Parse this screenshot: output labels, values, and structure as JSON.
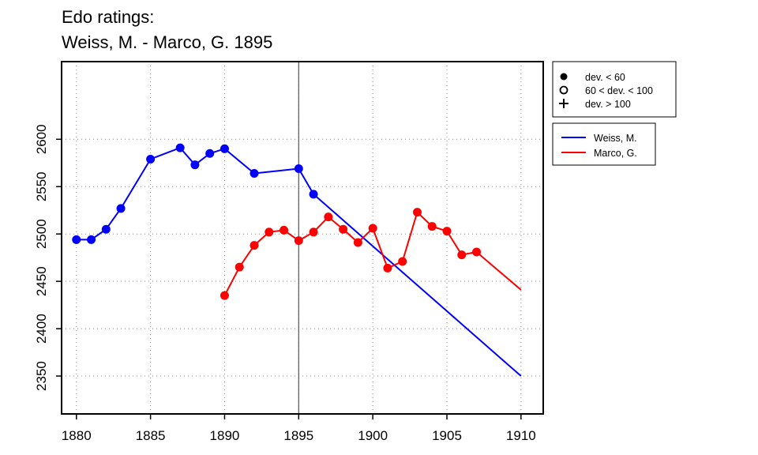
{
  "chart_data": {
    "type": "line",
    "title_lines": [
      "Edo ratings:",
      "Weiss, M. - Marco, G. 1895"
    ],
    "xlabel": "",
    "ylabel": "",
    "xlim": [
      1879,
      1911.5
    ],
    "ylim": [
      2310,
      2682
    ],
    "x_ticks": [
      1880,
      1885,
      1890,
      1895,
      1900,
      1905,
      1910
    ],
    "y_ticks": [
      2350,
      2400,
      2450,
      2500,
      2550,
      2600
    ],
    "grid": true,
    "vertical_marker_x": 1895,
    "deviation_legend": [
      {
        "marker": "filled-circle",
        "label": "dev. < 60"
      },
      {
        "marker": "open-circle",
        "label": "60 < dev. < 100"
      },
      {
        "marker": "plus",
        "label": "dev. > 100"
      }
    ],
    "series": [
      {
        "name": "Weiss, M.",
        "color": "#0000ff",
        "points": [
          [
            1880,
            2494
          ],
          [
            1881,
            2494
          ],
          [
            1882,
            2505
          ],
          [
            1883,
            2527
          ],
          [
            1885,
            2579
          ],
          [
            1887,
            2591
          ],
          [
            1888,
            2573
          ],
          [
            1889,
            2585
          ],
          [
            1890,
            2590
          ],
          [
            1892,
            2564
          ],
          [
            1895,
            2569
          ],
          [
            1896,
            2542
          ]
        ],
        "line_extension": [
          [
            1896,
            2542
          ],
          [
            1910,
            2350
          ]
        ]
      },
      {
        "name": "Marco, G.",
        "color": "#ff0000",
        "points": [
          [
            1890,
            2435
          ],
          [
            1891,
            2465
          ],
          [
            1892,
            2488
          ],
          [
            1893,
            2502
          ],
          [
            1894,
            2504
          ],
          [
            1895,
            2493
          ],
          [
            1896,
            2502
          ],
          [
            1897,
            2518
          ],
          [
            1898,
            2505
          ],
          [
            1899,
            2491
          ],
          [
            1900,
            2506
          ],
          [
            1901,
            2464
          ],
          [
            1902,
            2471
          ],
          [
            1903,
            2523
          ],
          [
            1904,
            2508
          ],
          [
            1905,
            2503
          ],
          [
            1906,
            2478
          ],
          [
            1907,
            2481
          ]
        ],
        "line_extension": [
          [
            1907,
            2481
          ],
          [
            1910,
            2441
          ]
        ]
      }
    ]
  }
}
